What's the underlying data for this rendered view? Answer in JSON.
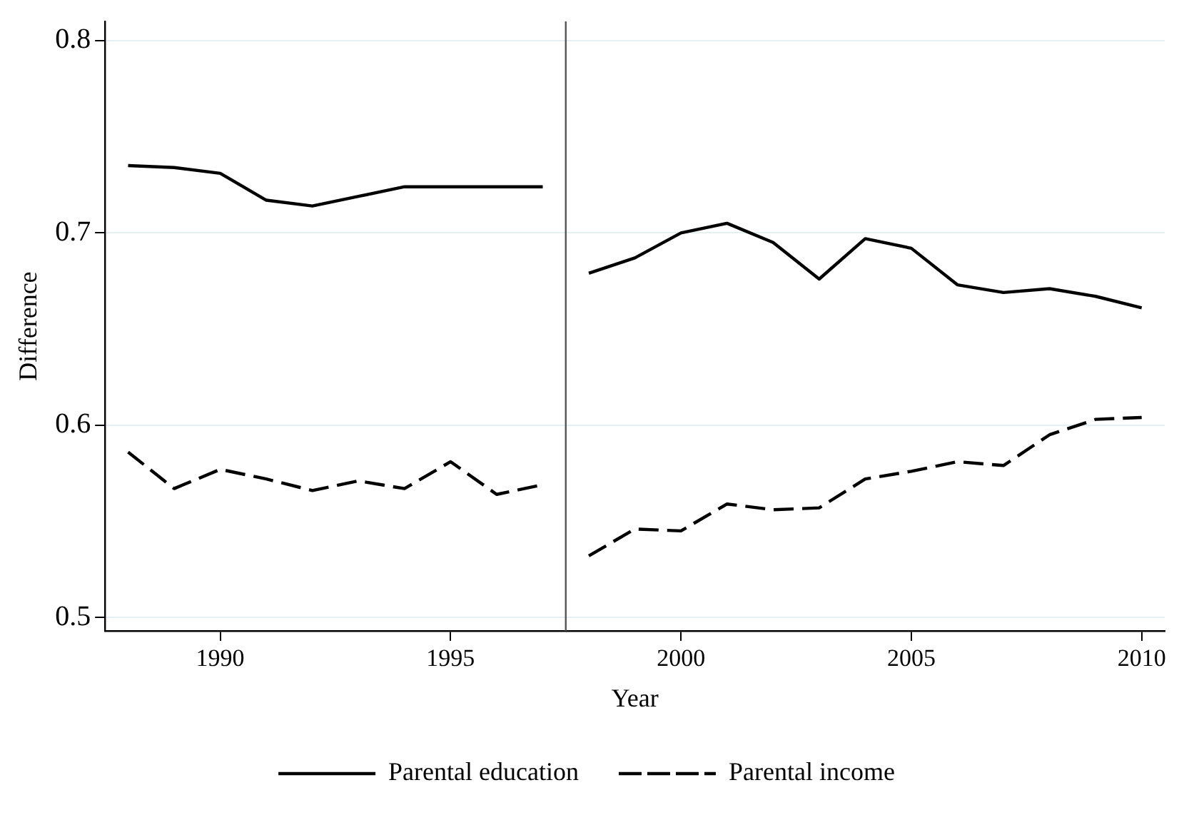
{
  "chart_data": {
    "type": "line",
    "xlabel": "Year",
    "ylabel": "Difference",
    "x": [
      1988,
      1989,
      1990,
      1991,
      1992,
      1993,
      1994,
      1995,
      1996,
      1997,
      1997.5,
      1998,
      1999,
      2000,
      2001,
      2002,
      2003,
      2004,
      2005,
      2006,
      2007,
      2008,
      2009,
      2010
    ],
    "series": [
      {
        "name": "Parental education",
        "color": "#000000",
        "line_style": "solid",
        "values": [
          0.735,
          0.734,
          0.731,
          0.717,
          0.714,
          0.719,
          0.724,
          0.724,
          0.724,
          0.724,
          null,
          0.679,
          0.687,
          0.7,
          0.705,
          0.695,
          0.676,
          0.697,
          0.692,
          0.673,
          0.669,
          0.671,
          0.667,
          0.661
        ]
      },
      {
        "name": "Parental income",
        "color": "#000000",
        "line_style": "dashed",
        "values": [
          0.586,
          0.567,
          0.577,
          0.572,
          0.566,
          0.571,
          0.567,
          0.581,
          0.564,
          0.569,
          null,
          0.532,
          0.546,
          0.545,
          0.559,
          0.556,
          0.557,
          0.572,
          0.576,
          0.581,
          0.579,
          0.595,
          0.603,
          0.604
        ]
      }
    ],
    "xlim": [
      1987.5,
      2010.5
    ],
    "xticks": [
      1990,
      1995,
      2000,
      2005,
      2010
    ],
    "ylim": [
      0.493,
      0.81
    ],
    "yticks": [
      {
        "value": 0.5,
        "label": "0.5"
      },
      {
        "value": 0.6,
        "label": "0.6"
      },
      {
        "value": 0.7,
        "label": "0.7"
      },
      {
        "value": 0.8,
        "label": "0.8"
      }
    ],
    "ref_lines": [
      {
        "axis": "x",
        "value": 1997.5,
        "color": "#555555"
      }
    ],
    "grid": "y",
    "legend": "bottom",
    "marker": "none"
  }
}
